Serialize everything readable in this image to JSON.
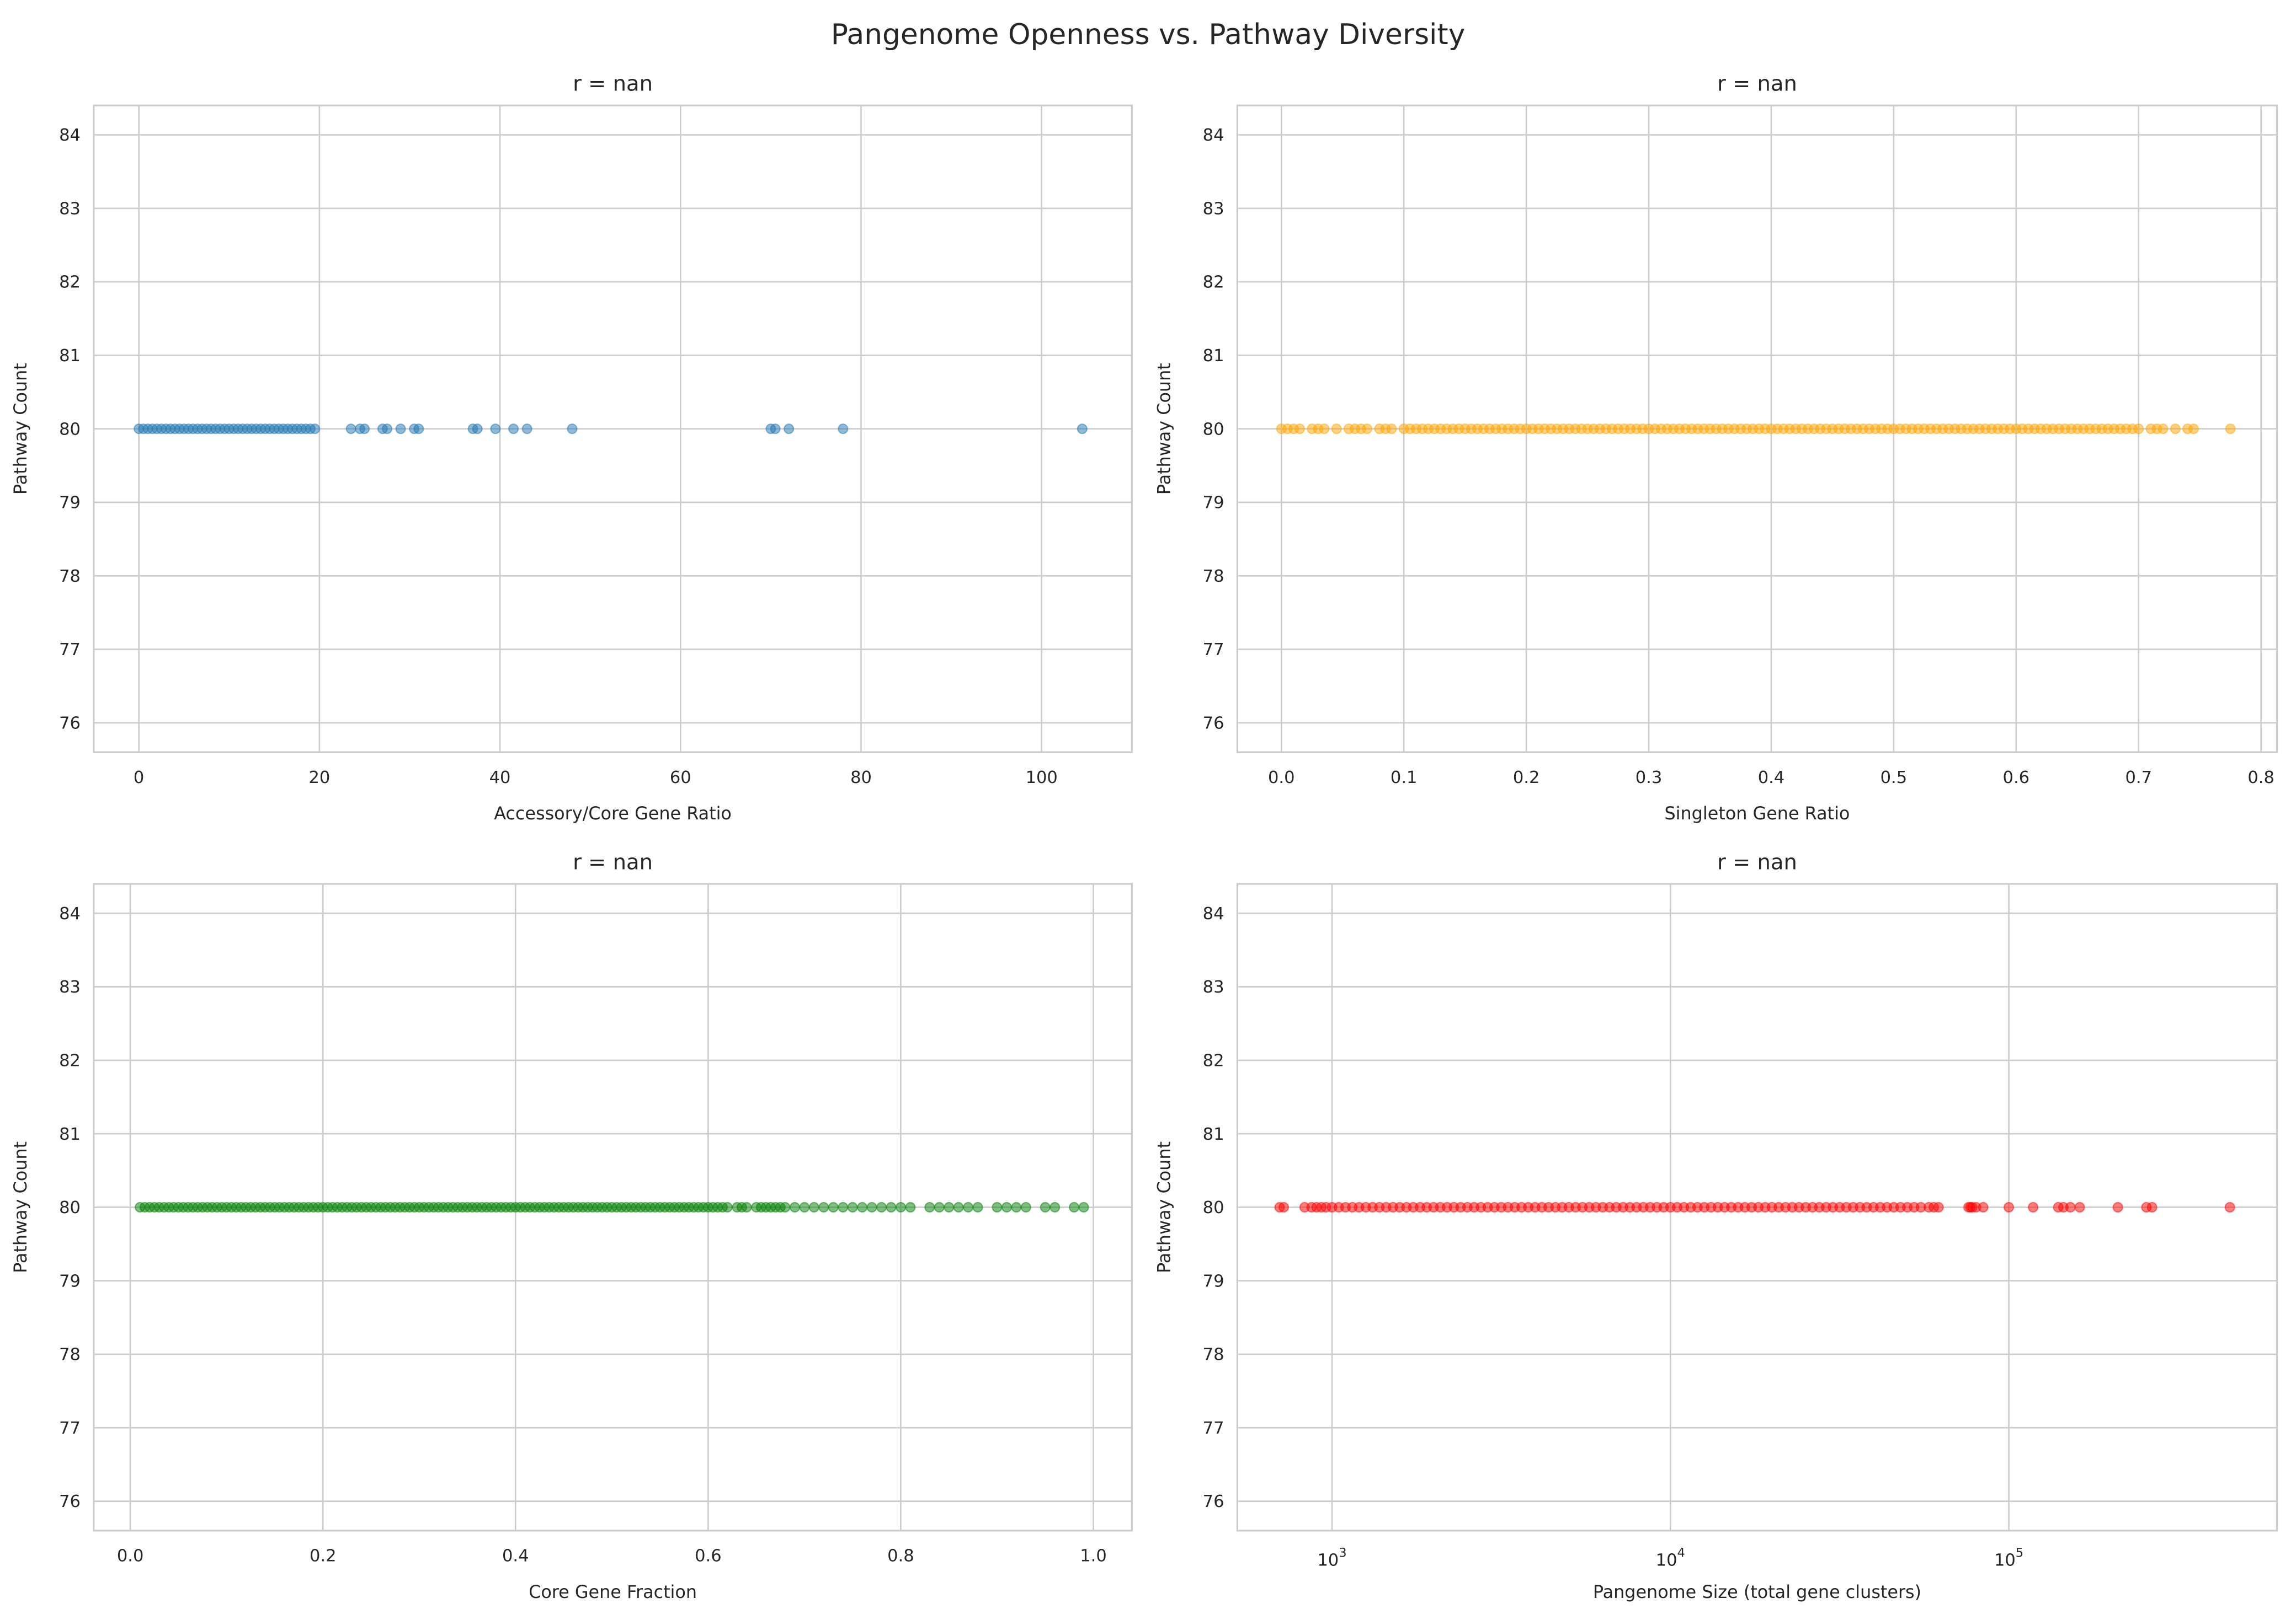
{
  "title": "Pangenome Openness vs. Pathway Diversity",
  "chart_data": [
    {
      "type": "scatter",
      "title": "r = nan",
      "xlabel": "Accessory/Core Gene Ratio",
      "ylabel": "Pathway Count",
      "xscale": "linear",
      "xlim": [
        -5,
        110
      ],
      "ylim": [
        75.6,
        84.4
      ],
      "xticks": [
        0,
        20,
        40,
        60,
        80,
        100
      ],
      "xticklabels": [
        "0",
        "20",
        "40",
        "60",
        "80",
        "100"
      ],
      "yticks": [
        76,
        77,
        78,
        79,
        80,
        81,
        82,
        83,
        84
      ],
      "grid": true,
      "color": "#1f77b4",
      "alpha": 0.5,
      "x": [
        0,
        0.5,
        1,
        1.5,
        2,
        2.5,
        3,
        3.5,
        4,
        4.5,
        5,
        5.5,
        6,
        6.5,
        7,
        7.5,
        8,
        8.5,
        9,
        9.5,
        10,
        10.5,
        11,
        11.5,
        12,
        12.5,
        13,
        13.5,
        14,
        14.5,
        15,
        15.5,
        16,
        16.5,
        17,
        17.5,
        18,
        18.5,
        19,
        19.5,
        23.5,
        24.5,
        25,
        27,
        27.5,
        29,
        30.5,
        31,
        37,
        37.5,
        39.5,
        41.5,
        43,
        48,
        70,
        70.5,
        72,
        78,
        104.5
      ],
      "y_constant": 80
    },
    {
      "type": "scatter",
      "title": "r = nan",
      "xlabel": "Singleton Gene Ratio",
      "ylabel": "Pathway Count",
      "xscale": "linear",
      "xlim": [
        -0.036,
        0.813
      ],
      "ylim": [
        75.6,
        84.4
      ],
      "xticks": [
        0,
        0.1,
        0.2,
        0.3,
        0.4,
        0.5,
        0.6,
        0.7,
        0.8
      ],
      "xticklabels": [
        "0.0",
        "0.1",
        "0.2",
        "0.3",
        "0.4",
        "0.5",
        "0.6",
        "0.7",
        "0.8"
      ],
      "yticks": [
        76,
        77,
        78,
        79,
        80,
        81,
        82,
        83,
        84
      ],
      "grid": true,
      "color": "#ffa500",
      "alpha": 0.5,
      "x": [
        0,
        0.005,
        0.01,
        0.015,
        0.025,
        0.03,
        0.035,
        0.045,
        0.055,
        0.06,
        0.065,
        0.07,
        0.08,
        0.085,
        0.09,
        0.1,
        0.105,
        0.11,
        0.115,
        0.12,
        0.125,
        0.13,
        0.135,
        0.14,
        0.145,
        0.15,
        0.155,
        0.16,
        0.165,
        0.17,
        0.175,
        0.18,
        0.185,
        0.19,
        0.195,
        0.2,
        0.205,
        0.21,
        0.215,
        0.22,
        0.225,
        0.23,
        0.235,
        0.24,
        0.245,
        0.25,
        0.255,
        0.26,
        0.265,
        0.27,
        0.275,
        0.28,
        0.285,
        0.29,
        0.295,
        0.3,
        0.305,
        0.31,
        0.315,
        0.32,
        0.325,
        0.33,
        0.335,
        0.34,
        0.345,
        0.35,
        0.355,
        0.36,
        0.365,
        0.37,
        0.375,
        0.38,
        0.385,
        0.39,
        0.395,
        0.4,
        0.405,
        0.41,
        0.415,
        0.42,
        0.425,
        0.43,
        0.435,
        0.44,
        0.445,
        0.45,
        0.455,
        0.46,
        0.465,
        0.47,
        0.475,
        0.48,
        0.485,
        0.49,
        0.495,
        0.5,
        0.505,
        0.51,
        0.515,
        0.52,
        0.525,
        0.53,
        0.535,
        0.54,
        0.545,
        0.55,
        0.555,
        0.56,
        0.565,
        0.57,
        0.575,
        0.58,
        0.585,
        0.59,
        0.595,
        0.6,
        0.605,
        0.61,
        0.615,
        0.62,
        0.625,
        0.63,
        0.635,
        0.64,
        0.645,
        0.65,
        0.655,
        0.66,
        0.665,
        0.67,
        0.675,
        0.68,
        0.685,
        0.69,
        0.695,
        0.7,
        0.71,
        0.715,
        0.72,
        0.73,
        0.74,
        0.745,
        0.775
      ],
      "y_constant": 80
    },
    {
      "type": "scatter",
      "title": "r = nan",
      "xlabel": "Core Gene Fraction",
      "ylabel": "Pathway Count",
      "xscale": "linear",
      "xlim": [
        -0.038,
        1.04
      ],
      "ylim": [
        75.6,
        84.4
      ],
      "xticks": [
        0,
        0.2,
        0.4,
        0.6,
        0.8,
        1.0
      ],
      "xticklabels": [
        "0.0",
        "0.2",
        "0.4",
        "0.6",
        "0.8",
        "1.0"
      ],
      "yticks": [
        76,
        77,
        78,
        79,
        80,
        81,
        82,
        83,
        84
      ],
      "grid": true,
      "color": "#008000",
      "alpha": 0.5,
      "x": [
        0.01,
        0.015,
        0.02,
        0.025,
        0.03,
        0.035,
        0.04,
        0.045,
        0.05,
        0.055,
        0.06,
        0.065,
        0.07,
        0.075,
        0.08,
        0.085,
        0.09,
        0.095,
        0.1,
        0.105,
        0.11,
        0.115,
        0.12,
        0.125,
        0.13,
        0.135,
        0.14,
        0.145,
        0.15,
        0.155,
        0.16,
        0.165,
        0.17,
        0.175,
        0.18,
        0.185,
        0.19,
        0.195,
        0.2,
        0.205,
        0.21,
        0.215,
        0.22,
        0.225,
        0.23,
        0.235,
        0.24,
        0.245,
        0.25,
        0.255,
        0.26,
        0.265,
        0.27,
        0.275,
        0.28,
        0.285,
        0.29,
        0.295,
        0.3,
        0.305,
        0.31,
        0.315,
        0.32,
        0.325,
        0.33,
        0.335,
        0.34,
        0.345,
        0.35,
        0.355,
        0.36,
        0.365,
        0.37,
        0.375,
        0.38,
        0.385,
        0.39,
        0.395,
        0.4,
        0.405,
        0.41,
        0.415,
        0.42,
        0.425,
        0.43,
        0.435,
        0.44,
        0.445,
        0.45,
        0.455,
        0.46,
        0.465,
        0.47,
        0.475,
        0.48,
        0.485,
        0.49,
        0.495,
        0.5,
        0.505,
        0.51,
        0.515,
        0.52,
        0.525,
        0.53,
        0.535,
        0.54,
        0.545,
        0.55,
        0.555,
        0.56,
        0.565,
        0.57,
        0.575,
        0.58,
        0.585,
        0.59,
        0.595,
        0.6,
        0.605,
        0.61,
        0.615,
        0.62,
        0.63,
        0.635,
        0.64,
        0.65,
        0.655,
        0.66,
        0.665,
        0.67,
        0.675,
        0.68,
        0.69,
        0.7,
        0.71,
        0.72,
        0.73,
        0.74,
        0.75,
        0.76,
        0.77,
        0.78,
        0.79,
        0.8,
        0.81,
        0.83,
        0.84,
        0.85,
        0.86,
        0.87,
        0.88,
        0.9,
        0.91,
        0.92,
        0.93,
        0.95,
        0.96,
        0.98,
        0.99
      ],
      "y_constant": 80
    },
    {
      "type": "scatter",
      "title": "r = nan",
      "xlabel": "Pangenome Size (total gene clusters)",
      "ylabel": "Pathway Count",
      "xscale": "log",
      "xlim": [
        525,
        620000
      ],
      "ylim": [
        75.6,
        84.4
      ],
      "xticks": [
        1000,
        10000,
        100000
      ],
      "xticklabels": [
        {
          "base": "10",
          "exp": "3"
        },
        {
          "base": "10",
          "exp": "4"
        },
        {
          "base": "10",
          "exp": "5"
        }
      ],
      "yticks": [
        76,
        77,
        78,
        79,
        80,
        81,
        82,
        83,
        84
      ],
      "grid": true,
      "color": "#ff0000",
      "alpha": 0.5,
      "x": [
        700,
        720,
        830,
        870,
        900,
        930,
        960,
        1000,
        1047,
        1096,
        1148,
        1202,
        1259,
        1318,
        1380,
        1445,
        1514,
        1585,
        1660,
        1738,
        1820,
        1905,
        1995,
        2089,
        2188,
        2291,
        2399,
        2512,
        2630,
        2754,
        2884,
        3020,
        3162,
        3311,
        3467,
        3631,
        3802,
        3981,
        4169,
        4365,
        4571,
        4786,
        5012,
        5248,
        5495,
        5754,
        6026,
        6310,
        6607,
        6918,
        7244,
        7586,
        7943,
        8318,
        8710,
        9120,
        9550,
        10000,
        10471,
        10965,
        11482,
        12023,
        12589,
        13183,
        13804,
        14454,
        15136,
        15849,
        16596,
        17378,
        18197,
        19055,
        19953,
        20893,
        21878,
        22909,
        23988,
        25119,
        26303,
        27542,
        28840,
        30200,
        31623,
        33113,
        34674,
        36308,
        38019,
        39811,
        41687,
        43652,
        45709,
        47863,
        50119,
        52481,
        54954,
        58000,
        60000,
        62000,
        76000,
        77000,
        78000,
        80000,
        84000,
        100000,
        118000,
        140000,
        145000,
        152000,
        162000,
        210000,
        255000,
        265000,
        450000
      ],
      "y_constant": 80
    }
  ]
}
